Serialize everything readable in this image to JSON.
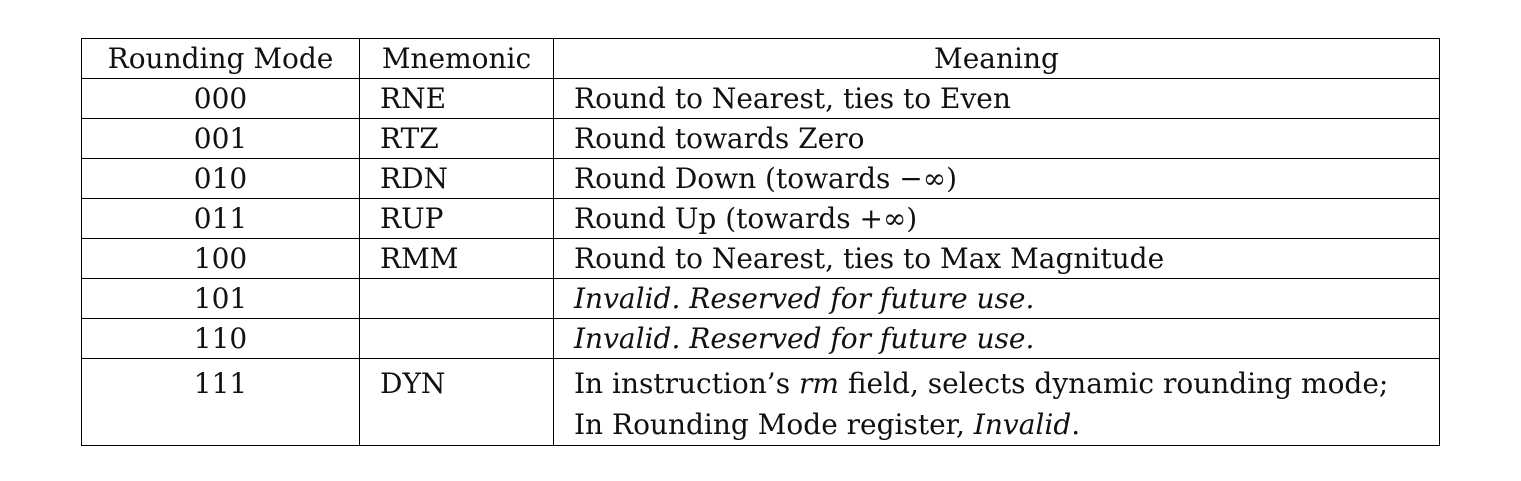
{
  "table": {
    "headers": {
      "mode": "Rounding Mode",
      "mnemonic": "Mnemonic",
      "meaning": "Meaning"
    },
    "rows": [
      {
        "mode": "000",
        "mnemonic": "RNE",
        "meaning": "Round to Nearest, ties to Even"
      },
      {
        "mode": "001",
        "mnemonic": "RTZ",
        "meaning": "Round towards Zero"
      },
      {
        "mode": "010",
        "mnemonic": "RDN",
        "meaning": "Round Down (towards −∞)"
      },
      {
        "mode": "011",
        "mnemonic": "RUP",
        "meaning": "Round Up (towards +∞)"
      },
      {
        "mode": "100",
        "mnemonic": "RMM",
        "meaning": "Round to Nearest, ties to Max Magnitude"
      },
      {
        "mode": "101",
        "mnemonic": "",
        "meaning": "Invalid. Reserved for future use."
      },
      {
        "mode": "110",
        "mnemonic": "",
        "meaning": "Invalid. Reserved for future use."
      },
      {
        "mode": "111",
        "mnemonic": "DYN",
        "meaning_line1": {
          "pre": "In instruction’s ",
          "em": "rm",
          "post": " field, selects dynamic rounding mode;"
        },
        "meaning_line2": {
          "pre": "In Rounding Mode register, ",
          "em": "Invalid",
          "post": "."
        }
      }
    ]
  }
}
